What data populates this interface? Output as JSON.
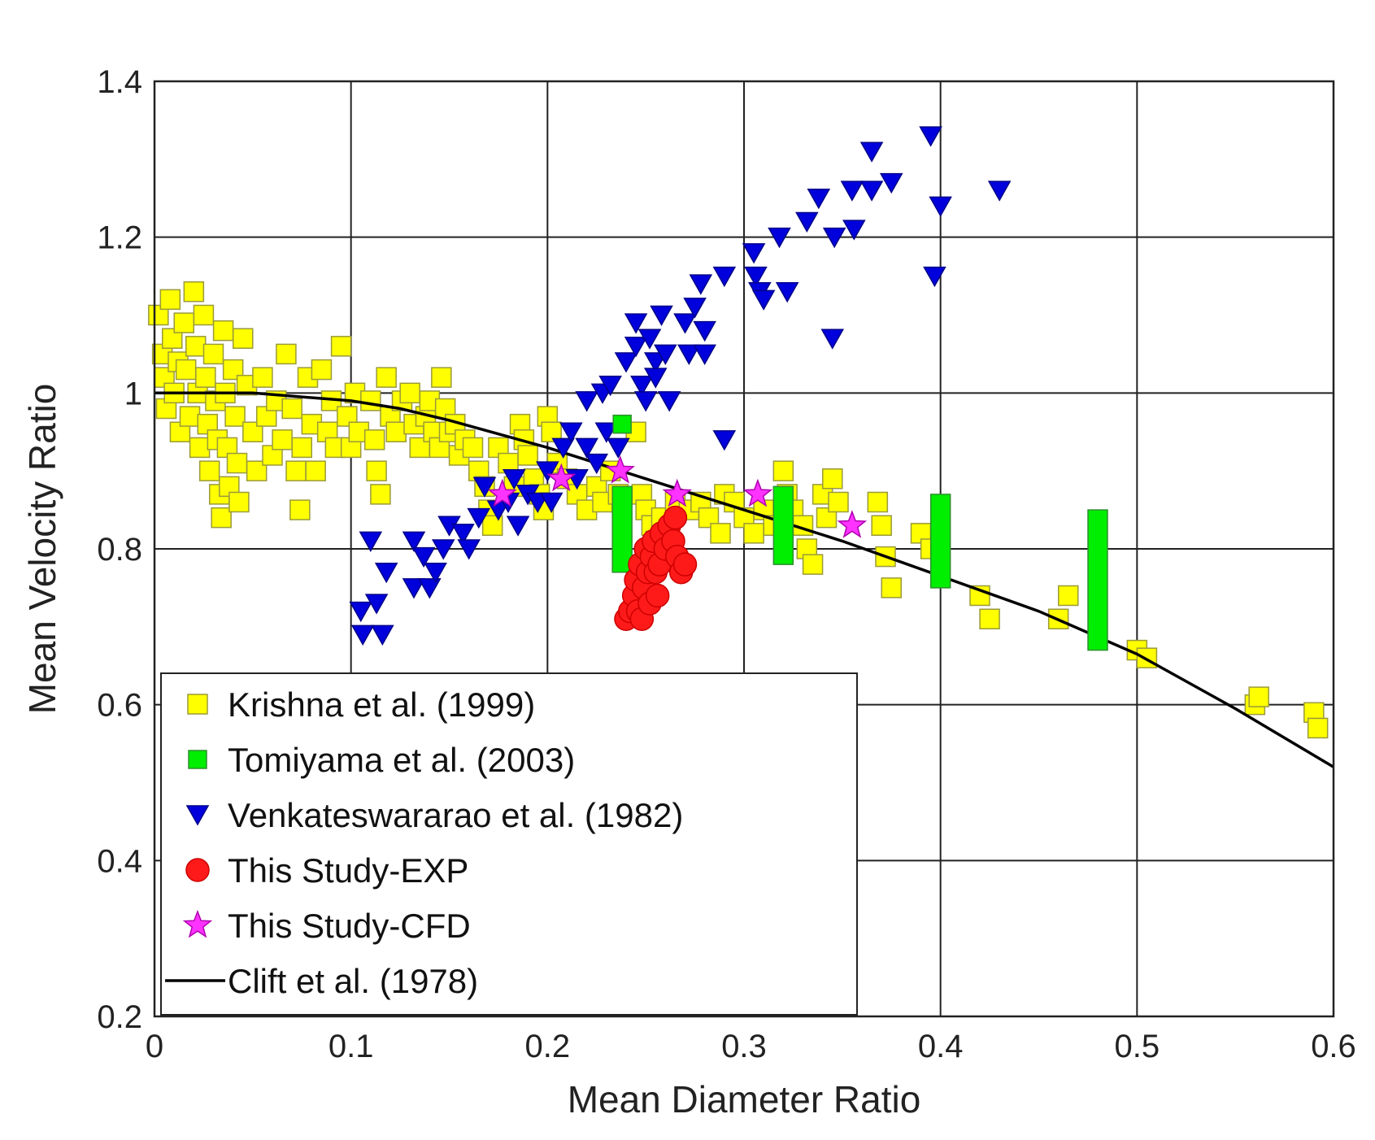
{
  "chart_data": {
    "type": "scatter",
    "xlabel": "Mean Diameter Ratio",
    "ylabel": "Mean Velocity Ratio",
    "xlim": [
      0,
      0.6
    ],
    "ylim": [
      0.2,
      1.4
    ],
    "xticks": [
      0,
      0.1,
      0.2,
      0.3,
      0.4,
      0.5,
      0.6
    ],
    "yticks": [
      0.2,
      0.4,
      0.6,
      0.8,
      1,
      1.2,
      1.4
    ],
    "xtick_labels": [
      "0",
      "0.1",
      "0.2",
      "0.3",
      "0.4",
      "0.5",
      "0.6"
    ],
    "ytick_labels": [
      "0.2",
      "0.4",
      "0.6",
      "0.8",
      "1",
      "1.2",
      "1.4"
    ],
    "grid": true,
    "legend_position": "bottom-left",
    "series": [
      {
        "name": "Krishna et al. (1999)",
        "marker": "square",
        "color": "#ffff00",
        "edge_color": "#9a9a3a",
        "points": [
          [
            0.002,
            1.1
          ],
          [
            0.004,
            1.05
          ],
          [
            0.005,
            1.02
          ],
          [
            0.006,
            0.98
          ],
          [
            0.008,
            1.12
          ],
          [
            0.009,
            1.07
          ],
          [
            0.01,
            1.0
          ],
          [
            0.012,
            1.04
          ],
          [
            0.013,
            0.95
          ],
          [
            0.015,
            1.09
          ],
          [
            0.016,
            1.03
          ],
          [
            0.018,
            0.97
          ],
          [
            0.02,
            1.13
          ],
          [
            0.021,
            1.06
          ],
          [
            0.022,
            1.0
          ],
          [
            0.023,
            0.93
          ],
          [
            0.025,
            1.1
          ],
          [
            0.026,
            1.02
          ],
          [
            0.027,
            0.96
          ],
          [
            0.028,
            0.9
          ],
          [
            0.03,
            1.05
          ],
          [
            0.031,
            0.99
          ],
          [
            0.032,
            0.94
          ],
          [
            0.033,
            0.87
          ],
          [
            0.034,
            0.84
          ],
          [
            0.035,
            1.08
          ],
          [
            0.036,
            1.0
          ],
          [
            0.037,
            0.93
          ],
          [
            0.038,
            0.88
          ],
          [
            0.04,
            1.03
          ],
          [
            0.041,
            0.97
          ],
          [
            0.042,
            0.91
          ],
          [
            0.043,
            0.86
          ],
          [
            0.045,
            1.07
          ],
          [
            0.047,
            1.01
          ],
          [
            0.05,
            0.95
          ],
          [
            0.052,
            0.9
          ],
          [
            0.055,
            1.02
          ],
          [
            0.057,
            0.97
          ],
          [
            0.06,
            0.92
          ],
          [
            0.062,
            0.99
          ],
          [
            0.065,
            0.94
          ],
          [
            0.067,
            1.05
          ],
          [
            0.07,
            0.98
          ],
          [
            0.072,
            0.9
          ],
          [
            0.074,
            0.85
          ],
          [
            0.075,
            0.93
          ],
          [
            0.078,
            1.02
          ],
          [
            0.08,
            0.96
          ],
          [
            0.082,
            0.9
          ],
          [
            0.085,
            1.03
          ],
          [
            0.088,
            0.95
          ],
          [
            0.09,
            0.99
          ],
          [
            0.092,
            0.93
          ],
          [
            0.095,
            1.06
          ],
          [
            0.098,
            0.97
          ],
          [
            0.1,
            0.93
          ],
          [
            0.102,
            1.0
          ],
          [
            0.104,
            0.95
          ],
          [
            0.11,
            0.99
          ],
          [
            0.112,
            0.94
          ],
          [
            0.113,
            0.9
          ],
          [
            0.115,
            0.87
          ],
          [
            0.118,
            1.02
          ],
          [
            0.12,
            0.97
          ],
          [
            0.123,
            0.95
          ],
          [
            0.126,
            0.99
          ],
          [
            0.13,
            1.0
          ],
          [
            0.132,
            0.96
          ],
          [
            0.135,
            0.93
          ],
          [
            0.138,
            0.97
          ],
          [
            0.14,
            0.99
          ],
          [
            0.142,
            0.95
          ],
          [
            0.145,
            0.93
          ],
          [
            0.146,
            1.02
          ],
          [
            0.148,
            0.98
          ],
          [
            0.15,
            0.95
          ],
          [
            0.153,
            0.96
          ],
          [
            0.155,
            0.92
          ],
          [
            0.158,
            0.94
          ],
          [
            0.162,
            0.93
          ],
          [
            0.165,
            0.9
          ],
          [
            0.168,
            0.88
          ],
          [
            0.17,
            0.85
          ],
          [
            0.172,
            0.83
          ],
          [
            0.175,
            0.93
          ],
          [
            0.18,
            0.91
          ],
          [
            0.183,
            0.88
          ],
          [
            0.186,
            0.96
          ],
          [
            0.188,
            0.94
          ],
          [
            0.19,
            0.92
          ],
          [
            0.193,
            0.89
          ],
          [
            0.196,
            0.87
          ],
          [
            0.198,
            0.85
          ],
          [
            0.2,
            0.97
          ],
          [
            0.202,
            0.95
          ],
          [
            0.205,
            0.91
          ],
          [
            0.21,
            0.89
          ],
          [
            0.215,
            0.87
          ],
          [
            0.22,
            0.85
          ],
          [
            0.225,
            0.88
          ],
          [
            0.228,
            0.86
          ],
          [
            0.232,
            0.9
          ],
          [
            0.236,
            0.87
          ],
          [
            0.245,
            0.95
          ],
          [
            0.248,
            0.87
          ],
          [
            0.25,
            0.85
          ],
          [
            0.253,
            0.83
          ],
          [
            0.255,
            0.81
          ],
          [
            0.258,
            0.84
          ],
          [
            0.265,
            0.86
          ],
          [
            0.272,
            0.85
          ],
          [
            0.278,
            0.86
          ],
          [
            0.282,
            0.84
          ],
          [
            0.288,
            0.82
          ],
          [
            0.29,
            0.87
          ],
          [
            0.295,
            0.86
          ],
          [
            0.3,
            0.84
          ],
          [
            0.305,
            0.82
          ],
          [
            0.31,
            0.85
          ],
          [
            0.315,
            0.83
          ],
          [
            0.32,
            0.9
          ],
          [
            0.322,
            0.87
          ],
          [
            0.325,
            0.85
          ],
          [
            0.33,
            0.83
          ],
          [
            0.332,
            0.8
          ],
          [
            0.335,
            0.78
          ],
          [
            0.34,
            0.87
          ],
          [
            0.342,
            0.84
          ],
          [
            0.345,
            0.89
          ],
          [
            0.348,
            0.86
          ],
          [
            0.368,
            0.86
          ],
          [
            0.37,
            0.83
          ],
          [
            0.372,
            0.79
          ],
          [
            0.375,
            0.75
          ],
          [
            0.39,
            0.82
          ],
          [
            0.395,
            0.8
          ],
          [
            0.42,
            0.74
          ],
          [
            0.425,
            0.71
          ],
          [
            0.46,
            0.71
          ],
          [
            0.465,
            0.74
          ],
          [
            0.5,
            0.67
          ],
          [
            0.505,
            0.66
          ],
          [
            0.56,
            0.6
          ],
          [
            0.562,
            0.61
          ],
          [
            0.59,
            0.59
          ],
          [
            0.592,
            0.57
          ]
        ]
      },
      {
        "name": "Tomiyama et al. (2003)",
        "marker": "bar",
        "color": "#00ee00",
        "edge_color": "#2f8f2f",
        "points": [
          [
            0.238,
            0.96
          ]
        ],
        "bars": [
          {
            "x": 0.238,
            "low": 0.77,
            "high": 0.88
          },
          {
            "x": 0.32,
            "low": 0.78,
            "high": 0.88
          },
          {
            "x": 0.4,
            "low": 0.75,
            "high": 0.87
          },
          {
            "x": 0.48,
            "low": 0.67,
            "high": 0.85
          }
        ]
      },
      {
        "name": "Venkateswararao et al. (1982)",
        "marker": "triangle-down",
        "color": "#0000dd",
        "edge_color": "#00008a",
        "points": [
          [
            0.105,
            0.72
          ],
          [
            0.106,
            0.69
          ],
          [
            0.11,
            0.81
          ],
          [
            0.113,
            0.73
          ],
          [
            0.116,
            0.69
          ],
          [
            0.118,
            0.77
          ],
          [
            0.132,
            0.75
          ],
          [
            0.132,
            0.81
          ],
          [
            0.137,
            0.79
          ],
          [
            0.14,
            0.75
          ],
          [
            0.143,
            0.77
          ],
          [
            0.147,
            0.8
          ],
          [
            0.15,
            0.83
          ],
          [
            0.157,
            0.82
          ],
          [
            0.16,
            0.8
          ],
          [
            0.165,
            0.84
          ],
          [
            0.168,
            0.88
          ],
          [
            0.175,
            0.85
          ],
          [
            0.18,
            0.86
          ],
          [
            0.183,
            0.89
          ],
          [
            0.185,
            0.83
          ],
          [
            0.19,
            0.87
          ],
          [
            0.195,
            0.86
          ],
          [
            0.2,
            0.9
          ],
          [
            0.202,
            0.86
          ],
          [
            0.208,
            0.93
          ],
          [
            0.212,
            0.95
          ],
          [
            0.215,
            0.89
          ],
          [
            0.22,
            0.93
          ],
          [
            0.22,
            0.99
          ],
          [
            0.225,
            0.91
          ],
          [
            0.228,
            1.0
          ],
          [
            0.23,
            0.95
          ],
          [
            0.232,
            1.01
          ],
          [
            0.236,
            0.93
          ],
          [
            0.24,
            1.04
          ],
          [
            0.245,
            1.06
          ],
          [
            0.245,
            1.09
          ],
          [
            0.248,
            1.01
          ],
          [
            0.25,
            0.99
          ],
          [
            0.252,
            1.07
          ],
          [
            0.255,
            1.04
          ],
          [
            0.255,
            1.02
          ],
          [
            0.258,
            1.1
          ],
          [
            0.26,
            1.05
          ],
          [
            0.262,
            0.99
          ],
          [
            0.27,
            1.09
          ],
          [
            0.272,
            1.05
          ],
          [
            0.275,
            1.11
          ],
          [
            0.278,
            1.14
          ],
          [
            0.28,
            1.08
          ],
          [
            0.28,
            1.05
          ],
          [
            0.29,
            1.15
          ],
          [
            0.29,
            0.94
          ],
          [
            0.305,
            1.18
          ],
          [
            0.306,
            1.15
          ],
          [
            0.308,
            1.13
          ],
          [
            0.31,
            1.12
          ],
          [
            0.318,
            1.2
          ],
          [
            0.322,
            1.13
          ],
          [
            0.332,
            1.22
          ],
          [
            0.338,
            1.25
          ],
          [
            0.345,
            1.07
          ],
          [
            0.346,
            1.2
          ],
          [
            0.355,
            1.26
          ],
          [
            0.356,
            1.21
          ],
          [
            0.365,
            1.31
          ],
          [
            0.365,
            1.26
          ],
          [
            0.375,
            1.27
          ],
          [
            0.395,
            1.33
          ],
          [
            0.397,
            1.15
          ],
          [
            0.4,
            1.24
          ],
          [
            0.43,
            1.26
          ]
        ]
      },
      {
        "name": "This Study-EXP",
        "marker": "circle",
        "color": "#ff1a1a",
        "edge_color": "#cc0000",
        "points": [
          [
            0.24,
            0.71
          ],
          [
            0.242,
            0.72
          ],
          [
            0.244,
            0.74
          ],
          [
            0.245,
            0.76
          ],
          [
            0.246,
            0.72
          ],
          [
            0.247,
            0.78
          ],
          [
            0.248,
            0.71
          ],
          [
            0.249,
            0.75
          ],
          [
            0.25,
            0.8
          ],
          [
            0.251,
            0.77
          ],
          [
            0.252,
            0.73
          ],
          [
            0.253,
            0.79
          ],
          [
            0.254,
            0.81
          ],
          [
            0.255,
            0.77
          ],
          [
            0.256,
            0.74
          ],
          [
            0.257,
            0.78
          ],
          [
            0.258,
            0.82
          ],
          [
            0.26,
            0.8
          ],
          [
            0.262,
            0.83
          ],
          [
            0.264,
            0.81
          ],
          [
            0.266,
            0.79
          ],
          [
            0.268,
            0.77
          ],
          [
            0.27,
            0.78
          ],
          [
            0.265,
            0.84
          ]
        ]
      },
      {
        "name": "This Study-CFD",
        "marker": "star",
        "color": "#ff33ff",
        "edge_color": "#b000b0",
        "points": [
          [
            0.177,
            0.87
          ],
          [
            0.207,
            0.89
          ],
          [
            0.237,
            0.9
          ],
          [
            0.266,
            0.87
          ],
          [
            0.307,
            0.87
          ],
          [
            0.355,
            0.83
          ]
        ]
      },
      {
        "name": "Clift et al. (1978)",
        "marker": "line",
        "color": "#000000",
        "points": [
          [
            0,
            1.0
          ],
          [
            0.05,
            1.0
          ],
          [
            0.1,
            0.99
          ],
          [
            0.125,
            0.98
          ],
          [
            0.15,
            0.965
          ],
          [
            0.2,
            0.93
          ],
          [
            0.25,
            0.89
          ],
          [
            0.3,
            0.85
          ],
          [
            0.35,
            0.81
          ],
          [
            0.4,
            0.765
          ],
          [
            0.45,
            0.72
          ],
          [
            0.5,
            0.665
          ],
          [
            0.55,
            0.595
          ],
          [
            0.6,
            0.52
          ]
        ]
      }
    ]
  }
}
